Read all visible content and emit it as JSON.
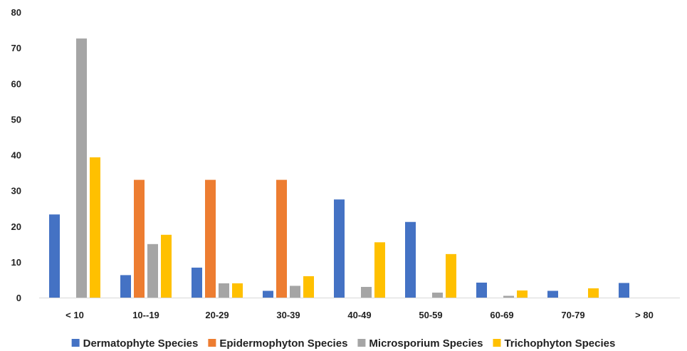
{
  "chart_data": {
    "type": "bar",
    "title": "",
    "xlabel": "",
    "ylabel": "",
    "ylim": [
      0,
      80
    ],
    "yticks": [
      0,
      10,
      20,
      30,
      40,
      50,
      60,
      70,
      80
    ],
    "grid": false,
    "legend_position": "bottom",
    "categories": [
      "< 10",
      "10--19",
      "20-29",
      "30-39",
      "40-49",
      "50-59",
      "60-69",
      "70-79",
      "> 80"
    ],
    "series": [
      {
        "name": "Dermatophyte Species",
        "color": "#4472C4",
        "values": [
          23.3,
          6.3,
          8.4,
          1.9,
          27.5,
          21.2,
          4.2,
          1.9,
          4.1
        ]
      },
      {
        "name": "Epidermophyton Species",
        "color": "#ED7D31",
        "values": [
          0,
          33,
          33,
          33,
          0,
          0,
          0,
          0,
          0
        ]
      },
      {
        "name": "Microsporium Species",
        "color": "#A5A5A5",
        "values": [
          72.6,
          15,
          4,
          3.3,
          3,
          1.4,
          0.5,
          0,
          0
        ]
      },
      {
        "name": "Trichophyton Species",
        "color": "#FFC000",
        "values": [
          39.3,
          17.6,
          4,
          6,
          15.5,
          12.2,
          2,
          2.6,
          0
        ]
      }
    ]
  }
}
